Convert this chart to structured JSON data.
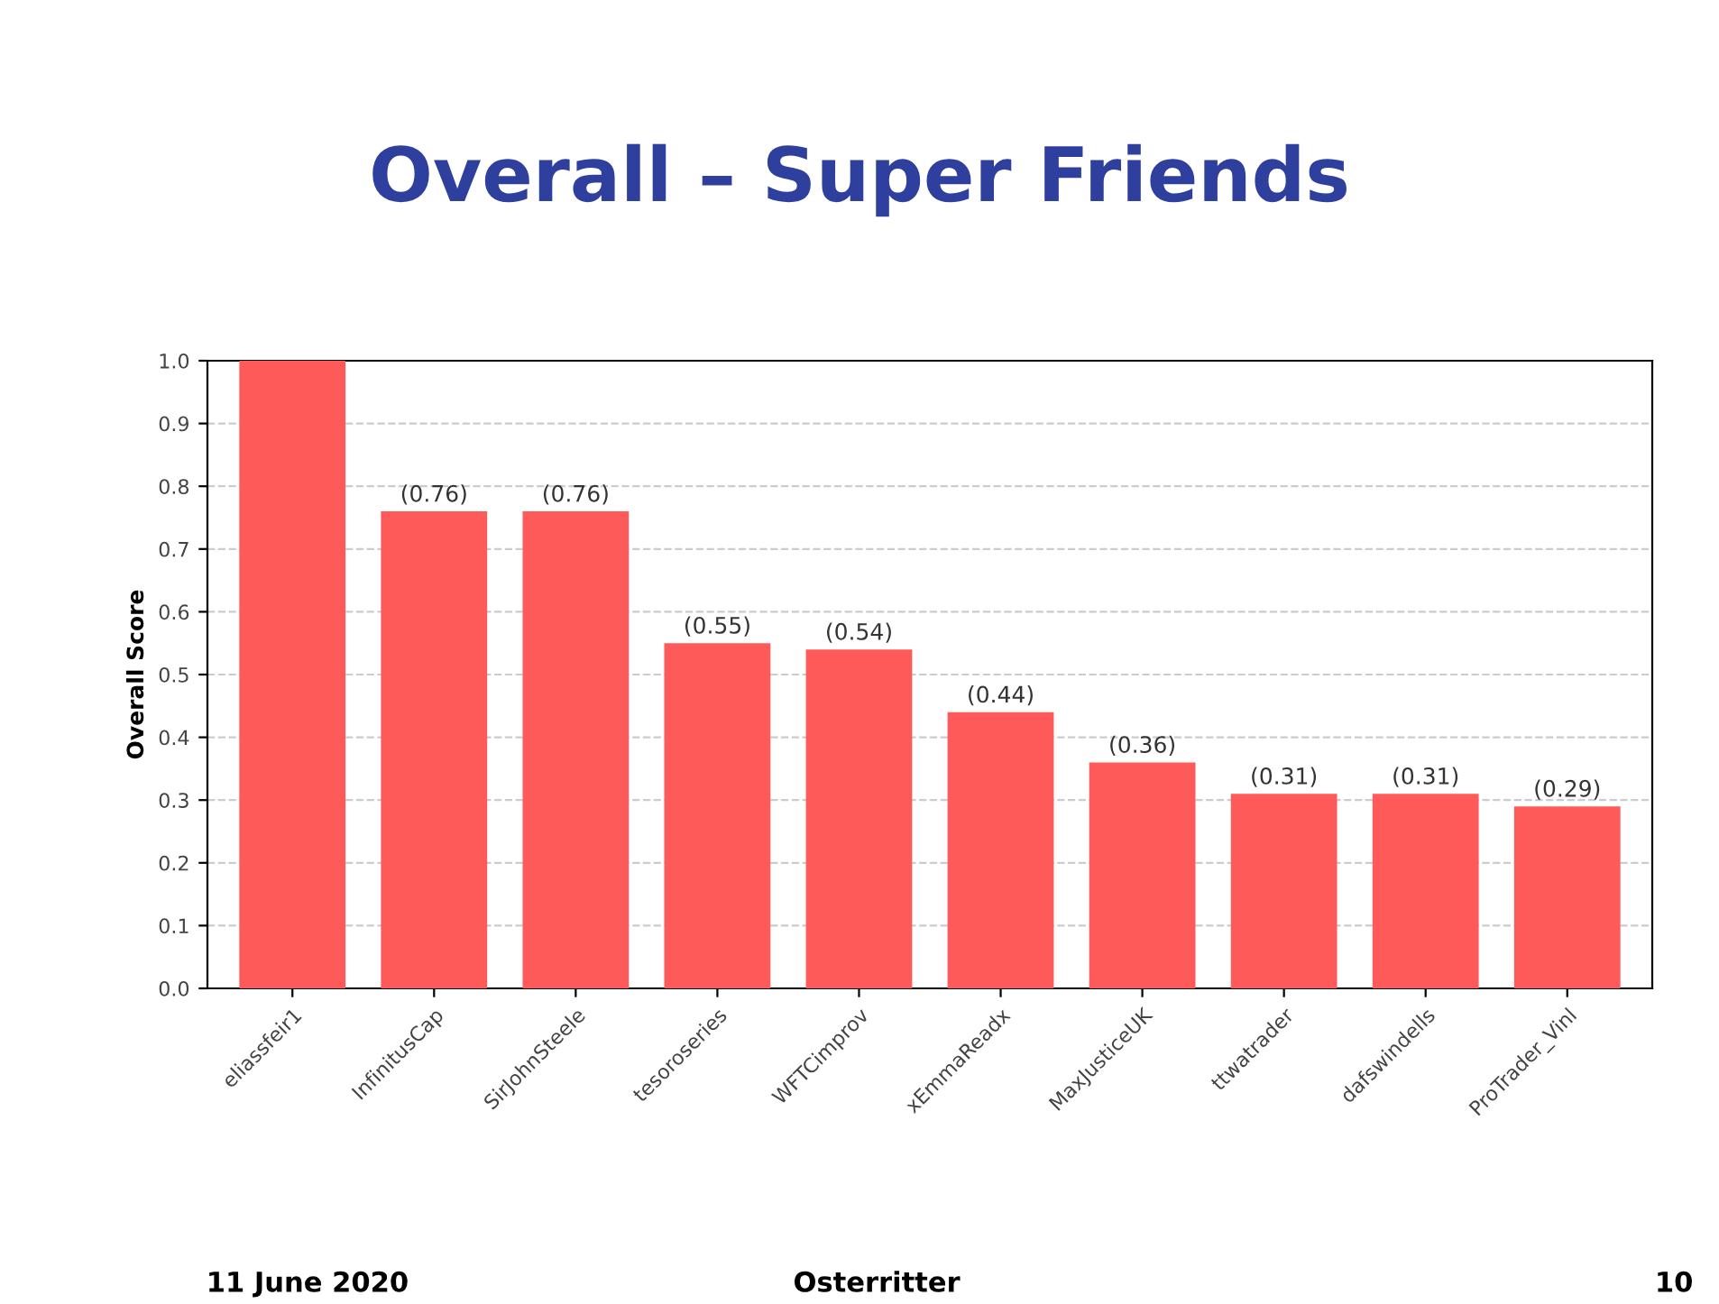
{
  "chart_data": {
    "type": "bar",
    "title": "Overall – Super Friends",
    "ylabel": "Overall Score",
    "categories": [
      "eliassfeir1",
      "InfinitusCap",
      "SirJohnSteele",
      "tesoroseries",
      "WFTCimprov",
      "xEmmaReadx",
      "MaxJusticeUK",
      "ttwatrader",
      "dafswindells",
      "ProTrader_Vinl"
    ],
    "values": [
      1.0,
      0.76,
      0.76,
      0.55,
      0.54,
      0.44,
      0.36,
      0.31,
      0.31,
      0.29
    ],
    "value_labels": [
      null,
      "(0.76)",
      "(0.76)",
      "(0.55)",
      "(0.54)",
      "(0.44)",
      "(0.36)",
      "(0.31)",
      "(0.31)",
      "(0.29)"
    ],
    "color": "#ff5a5a",
    "ylim": [
      0,
      1.0
    ],
    "yticks": [
      {
        "value": 0,
        "label": "0.0"
      },
      0.1,
      0.2,
      0.3,
      0.4,
      0.5,
      0.6,
      0.7,
      0.8,
      0.9,
      {
        "value": 1,
        "label": "1.0"
      }
    ],
    "grid": "y",
    "annotations": [
      "11 June 2020",
      "Osterritter",
      "10"
    ]
  }
}
